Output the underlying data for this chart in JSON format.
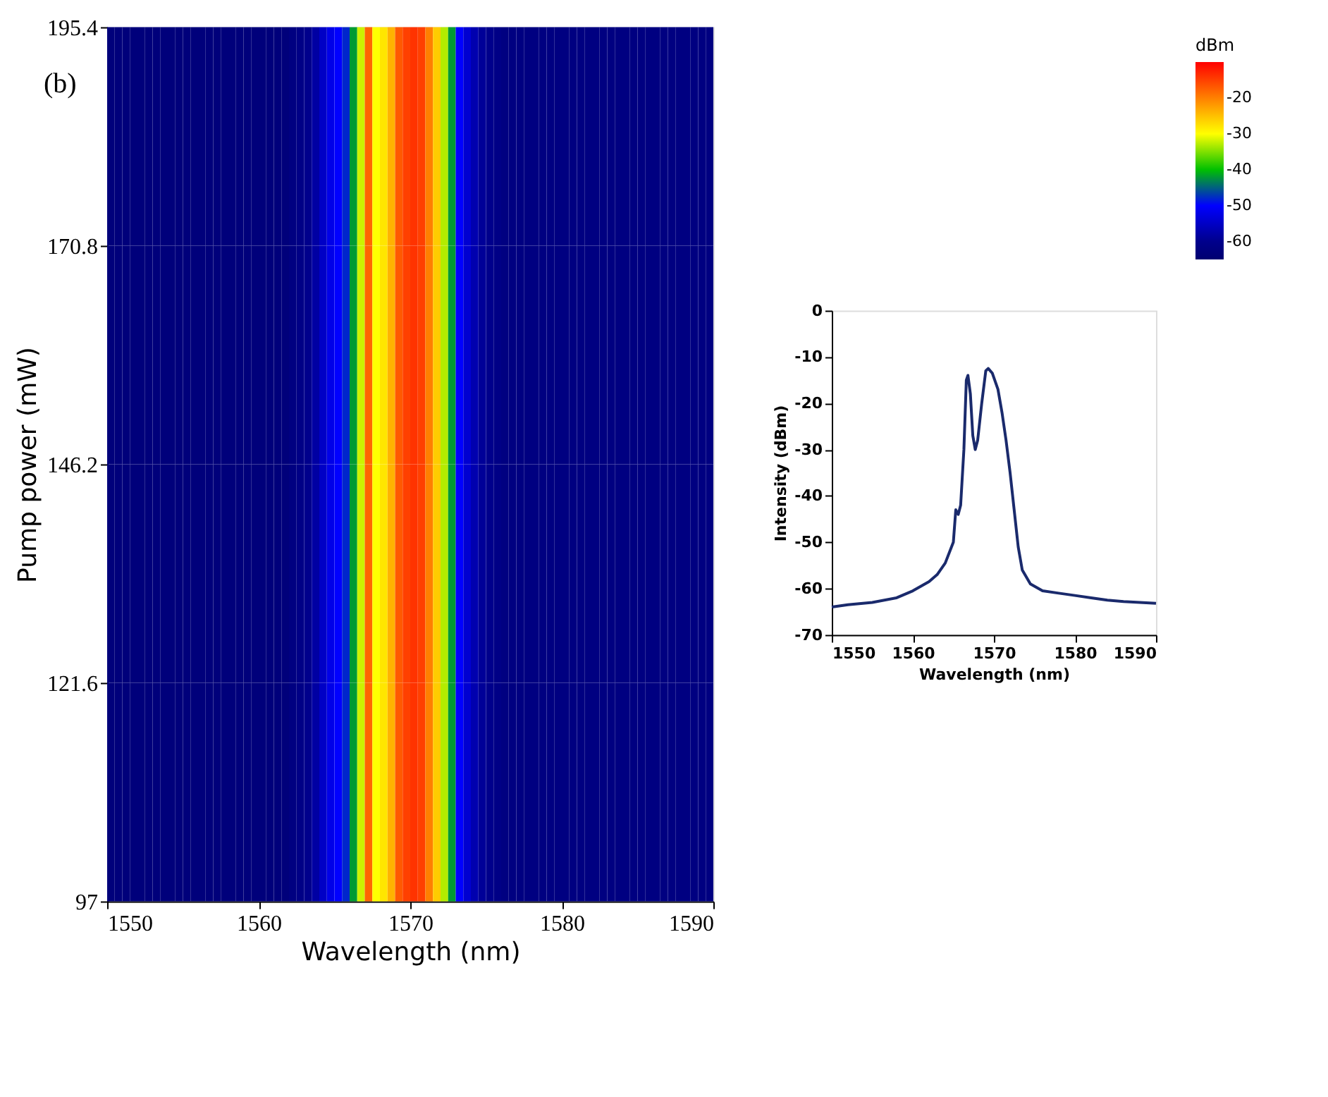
{
  "chart_data": [
    {
      "type": "heatmap",
      "xlabel": "Wavelength (nm)",
      "ylabel": "Pump power (mW)",
      "annotations": [
        "(b)"
      ],
      "clabel": "dBm",
      "clim": [
        -65,
        -10
      ],
      "cticks": [
        -60,
        -50,
        -40,
        -30,
        -20
      ],
      "grid": false,
      "xlim": [
        1550,
        1590
      ],
      "xticks": [
        1550,
        1560,
        1570,
        1580,
        1590
      ],
      "ylim": [
        97,
        195.4
      ],
      "yticks": [
        97,
        121.6,
        146.2,
        170.8,
        195.4
      ],
      "x": [
        1550.25,
        1550.75,
        1551.25,
        1551.75,
        1552.25,
        1552.75,
        1553.25,
        1553.75,
        1554.25,
        1554.75,
        1555.25,
        1555.75,
        1556.25,
        1556.75,
        1557.25,
        1557.75,
        1558.25,
        1558.75,
        1559.25,
        1559.75,
        1560.25,
        1560.75,
        1561.25,
        1561.75,
        1562.25,
        1562.75,
        1563.25,
        1563.75,
        1564.25,
        1564.75,
        1565.25,
        1565.75,
        1566.25,
        1566.75,
        1567.25,
        1567.75,
        1568.25,
        1568.75,
        1569.25,
        1569.75,
        1570.25,
        1570.75,
        1571.25,
        1571.75,
        1572.25,
        1572.75,
        1573.25,
        1573.75,
        1574.25,
        1574.75,
        1575.25,
        1575.75,
        1576.25,
        1576.75,
        1577.25,
        1577.75,
        1578.25,
        1578.75,
        1579.25,
        1579.75,
        1580.25,
        1580.75,
        1581.25,
        1581.75,
        1582.25,
        1582.75,
        1583.25,
        1583.75,
        1584.25,
        1584.75,
        1585.25,
        1585.75,
        1586.25,
        1586.75,
        1587.25,
        1587.75,
        1588.25,
        1588.75,
        1589.25,
        1589.75
      ],
      "cells": [
        [
          -63,
          -63,
          -63,
          -63,
          -63,
          -63,
          -63,
          -63,
          -63,
          -63,
          -63,
          -63,
          -63,
          -63,
          -63,
          -63,
          -63,
          -63,
          -63,
          -63,
          -63,
          -63,
          -63,
          -63,
          -62,
          -61,
          -60,
          -58,
          -55,
          -52,
          -50,
          -48,
          -42,
          -32,
          -18,
          -30,
          -28,
          -24,
          -17,
          -15,
          -14,
          -15,
          -20,
          -26,
          -33,
          -42,
          -50,
          -54,
          -57,
          -59,
          -60,
          -61,
          -62,
          -62,
          -62,
          -62,
          -62,
          -62,
          -62,
          -62,
          -62,
          -62,
          -62,
          -62,
          -62,
          -62,
          -62,
          -62,
          -62,
          -62,
          -62,
          -62,
          -62,
          -62,
          -62,
          -62,
          -62,
          -62,
          -62,
          -62
        ],
        [
          -63,
          -63,
          -63,
          -63,
          -63,
          -63,
          -63,
          -63,
          -63,
          -63,
          -63,
          -63,
          -63,
          -63,
          -63,
          -63,
          -63,
          -63,
          -63,
          -63,
          -63,
          -63,
          -63,
          -63,
          -62,
          -61,
          -60,
          -58,
          -55,
          -52,
          -50,
          -48,
          -42,
          -32,
          -18,
          -30,
          -28,
          -24,
          -17,
          -15,
          -14,
          -15,
          -20,
          -26,
          -33,
          -42,
          -50,
          -54,
          -57,
          -59,
          -60,
          -61,
          -62,
          -62,
          -62,
          -62,
          -62,
          -62,
          -62,
          -62,
          -62,
          -62,
          -62,
          -62,
          -62,
          -62,
          -62,
          -62,
          -62,
          -62,
          -62,
          -62,
          -62,
          -62,
          -62,
          -62,
          -62,
          -62,
          -62,
          -62
        ],
        [
          -63,
          -63,
          -63,
          -63,
          -63,
          -63,
          -63,
          -63,
          -63,
          -63,
          -63,
          -63,
          -63,
          -63,
          -63,
          -63,
          -63,
          -63,
          -63,
          -63,
          -63,
          -63,
          -63,
          -63,
          -62,
          -61,
          -60,
          -58,
          -55,
          -52,
          -50,
          -48,
          -42,
          -32,
          -18,
          -30,
          -28,
          -24,
          -17,
          -15,
          -14,
          -15,
          -20,
          -26,
          -33,
          -42,
          -50,
          -54,
          -57,
          -59,
          -60,
          -61,
          -62,
          -62,
          -62,
          -62,
          -62,
          -62,
          -62,
          -62,
          -62,
          -62,
          -62,
          -62,
          -62,
          -62,
          -62,
          -62,
          -62,
          -62,
          -62,
          -62,
          -62,
          -62,
          -62,
          -62,
          -62,
          -62,
          -62,
          -62
        ],
        [
          -63,
          -63,
          -63,
          -63,
          -63,
          -63,
          -63,
          -63,
          -63,
          -63,
          -63,
          -63,
          -63,
          -63,
          -63,
          -63,
          -63,
          -63,
          -63,
          -63,
          -63,
          -63,
          -63,
          -63,
          -62,
          -61,
          -60,
          -58,
          -55,
          -52,
          -50,
          -48,
          -42,
          -32,
          -18,
          -30,
          -28,
          -24,
          -17,
          -15,
          -14,
          -15,
          -20,
          -26,
          -33,
          -42,
          -50,
          -54,
          -57,
          -59,
          -60,
          -61,
          -62,
          -62,
          -62,
          -62,
          -62,
          -62,
          -62,
          -62,
          -62,
          -62,
          -62,
          -62,
          -62,
          -62,
          -62,
          -62,
          -62,
          -62,
          -62,
          -62,
          -62,
          -62,
          -62,
          -62,
          -62,
          -62,
          -62,
          -62
        ]
      ]
    },
    {
      "type": "line",
      "xlabel": "Wavelength (nm)",
      "ylabel": "Intensity (dBm)",
      "xlim": [
        1550,
        1590
      ],
      "xticks": [
        1550,
        1560,
        1570,
        1580,
        1590
      ],
      "ylim": [
        -70,
        0
      ],
      "yticks": [
        -70,
        -60,
        -50,
        -40,
        -30,
        -20,
        -10,
        0
      ],
      "grid": false,
      "series": [
        {
          "color": "#1a2a6c",
          "x": [
            1550,
            1552,
            1555,
            1558,
            1560,
            1562,
            1563,
            1564,
            1565,
            1565.3,
            1565.6,
            1565.9,
            1566.3,
            1566.6,
            1566.8,
            1567.1,
            1567.4,
            1567.7,
            1568,
            1568.5,
            1569,
            1569.3,
            1569.8,
            1570.5,
            1571,
            1571.5,
            1572,
            1572.5,
            1573,
            1573.5,
            1574.5,
            1576,
            1578,
            1580,
            1582,
            1584,
            1586,
            1588,
            1590
          ],
          "values": [
            -64,
            -63.5,
            -63,
            -62,
            -60.5,
            -58.5,
            -57,
            -54.5,
            -50,
            -43,
            -44,
            -42,
            -30,
            -15,
            -14,
            -18,
            -27,
            -30,
            -28,
            -20,
            -13,
            -12.5,
            -13.5,
            -17,
            -22,
            -28,
            -35,
            -43,
            -51,
            -56,
            -59,
            -60.5,
            -61,
            -61.5,
            -62,
            -62.5,
            -62.8,
            -63,
            -63.2
          ]
        }
      ]
    }
  ]
}
